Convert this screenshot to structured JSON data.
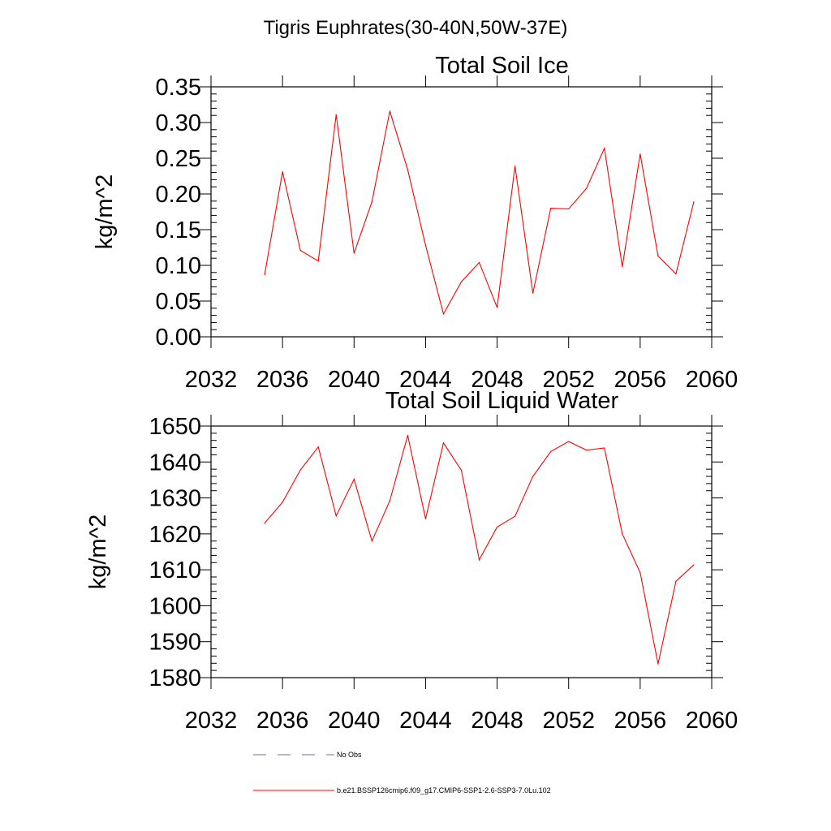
{
  "suptitle": "Tigris Euphrates(30-40N,50W-37E)",
  "colors": {
    "series": "#ff0000",
    "obs": "#6b6fa0",
    "axis": "#000000"
  },
  "legend": [
    {
      "label": "No Obs",
      "style": "dashed",
      "color": "#6b6fa0"
    },
    {
      "label": "b.e21.BSSP126cmip6.f09_g17.CMIP6-SSP1-2.6-SSP3-7.0Lu.102",
      "style": "solid",
      "color": "#ff0000"
    }
  ],
  "chart_data": [
    {
      "type": "line",
      "title": "Total Soil Ice",
      "xlabel": "",
      "ylabel": "kg/m^2",
      "xlim": [
        2032,
        2060
      ],
      "ylim": [
        0,
        0.35
      ],
      "xticks": [
        2032,
        2036,
        2040,
        2044,
        2048,
        2052,
        2056,
        2060
      ],
      "xtick_labels": [
        "2032",
        "2036",
        "2040",
        "2044",
        "2048",
        "2052",
        "2056",
        "2060"
      ],
      "yticks": [
        0,
        0.05,
        0.1,
        0.15,
        0.2,
        0.25,
        0.3,
        0.35
      ],
      "ytick_labels": [
        "0.00",
        "0.05",
        "0.10",
        "0.15",
        "0.20",
        "0.25",
        "0.30",
        "0.35"
      ],
      "grid": false,
      "x": [
        2035,
        2036,
        2037,
        2038,
        2039,
        2040,
        2041,
        2042,
        2043,
        2044,
        2045,
        2046,
        2047,
        2048,
        2049,
        2050,
        2051,
        2052,
        2053,
        2054,
        2055,
        2056,
        2057,
        2058,
        2059
      ],
      "series": [
        {
          "values": [
            0.087,
            0.231,
            0.121,
            0.106,
            0.311,
            0.117,
            0.189,
            0.316,
            0.234,
            0.128,
            0.032,
            0.077,
            0.104,
            0.041,
            0.239,
            0.061,
            0.18,
            0.179,
            0.208,
            0.264,
            0.098,
            0.256,
            0.113,
            0.088,
            0.189
          ]
        }
      ]
    },
    {
      "type": "line",
      "title": "Total Soil Liquid Water",
      "xlabel": "",
      "ylabel": "kg/m^2",
      "xlim": [
        2032,
        2060
      ],
      "ylim": [
        1580,
        1650
      ],
      "xticks": [
        2032,
        2036,
        2040,
        2044,
        2048,
        2052,
        2056,
        2060
      ],
      "xtick_labels": [
        "2032",
        "2036",
        "2040",
        "2044",
        "2048",
        "2052",
        "2056",
        "2060"
      ],
      "yticks": [
        1580,
        1590,
        1600,
        1610,
        1620,
        1630,
        1640,
        1650
      ],
      "ytick_labels": [
        "1580",
        "1590",
        "1600",
        "1610",
        "1620",
        "1630",
        "1640",
        "1650"
      ],
      "grid": false,
      "x": [
        2035,
        2036,
        2037,
        2038,
        2039,
        2040,
        2041,
        2042,
        2043,
        2044,
        2045,
        2046,
        2047,
        2048,
        2049,
        2050,
        2051,
        2052,
        2053,
        2054,
        2055,
        2056,
        2057,
        2058,
        2059
      ],
      "series": [
        {
          "values": [
            1623.0,
            1628.8,
            1637.8,
            1644.2,
            1625.0,
            1635.2,
            1618.0,
            1629.2,
            1647.4,
            1624.2,
            1645.3,
            1637.7,
            1612.8,
            1621.9,
            1624.9,
            1636.0,
            1642.9,
            1645.7,
            1643.3,
            1643.9,
            1620.0,
            1609.2,
            1583.8,
            1606.8,
            1611.4
          ]
        }
      ]
    }
  ]
}
